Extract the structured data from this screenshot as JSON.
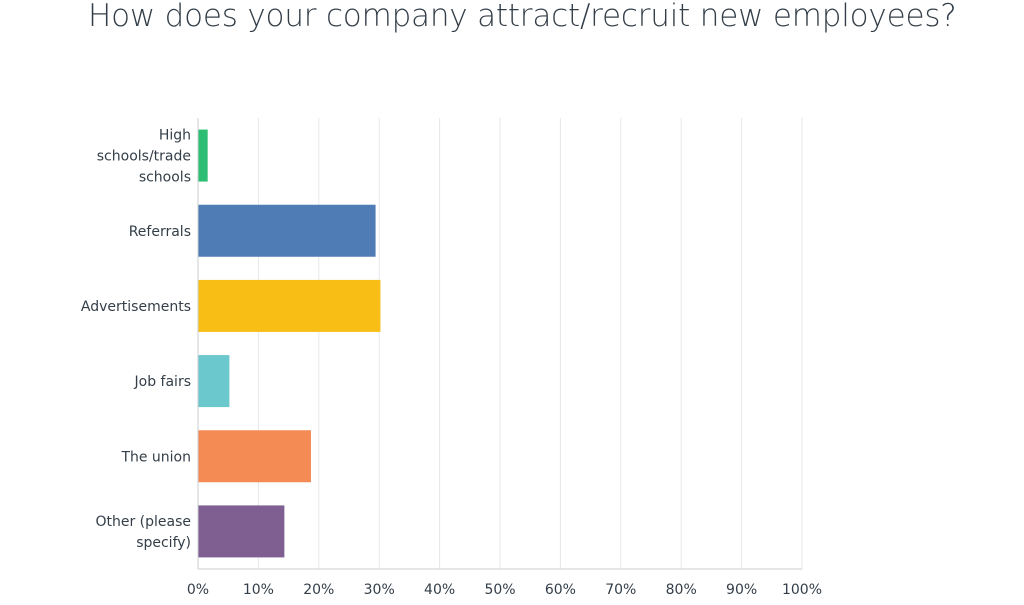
{
  "title": "How does your company attract/recruit new employees?",
  "chart_data": {
    "type": "bar",
    "orientation": "horizontal",
    "categories": [
      "High schools/trade schools",
      "Referrals",
      "Advertisements",
      "Job fairs",
      "The union",
      "Other (please specify)"
    ],
    "category_label_lines": [
      [
        "High",
        "schools/trade",
        "schools"
      ],
      [
        "Referrals"
      ],
      [
        "Advertisements"
      ],
      [
        "Job fairs"
      ],
      [
        "The union"
      ],
      [
        "Other (please",
        "specify)"
      ]
    ],
    "values": [
      1.6,
      29.4,
      30.2,
      5.2,
      18.7,
      14.3
    ],
    "colors": [
      "#2dbe73",
      "#507cb6",
      "#f9be15",
      "#6bc8cd",
      "#f48a54",
      "#7f5f92"
    ],
    "xlim": [
      0,
      100
    ],
    "x_ticks": [
      "0%",
      "10%",
      "20%",
      "30%",
      "40%",
      "50%",
      "60%",
      "70%",
      "80%",
      "90%",
      "100%"
    ],
    "x_unit": "%",
    "grid": true
  }
}
